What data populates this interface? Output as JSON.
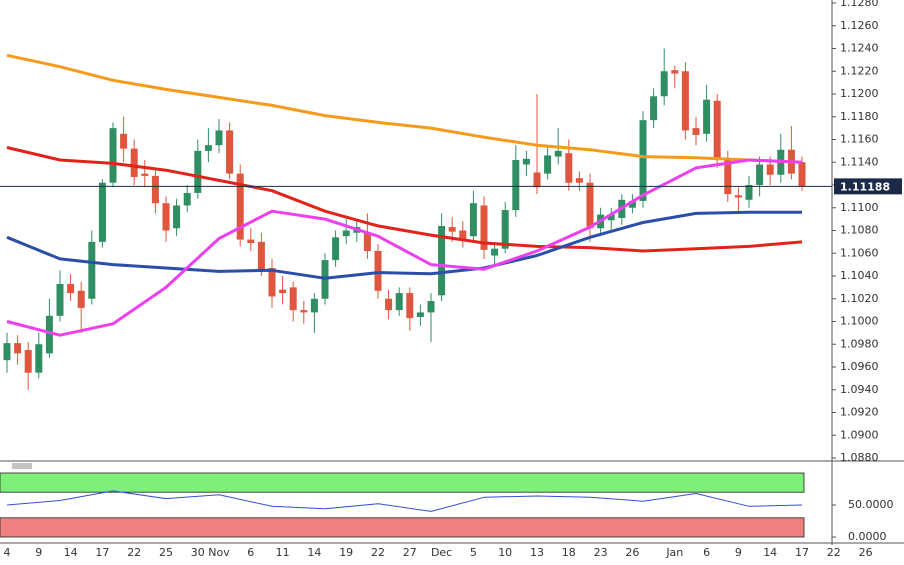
{
  "chart_data": {
    "type": "candlestick",
    "categories": [
      "4",
      null,
      null,
      "9",
      null,
      null,
      "14",
      null,
      null,
      "17",
      null,
      null,
      "22",
      null,
      null,
      "25",
      null,
      null,
      "30",
      null,
      "Nov",
      null,
      null,
      "6",
      null,
      null,
      "11",
      null,
      null,
      "14",
      null,
      null,
      "19",
      null,
      null,
      "22",
      null,
      null,
      "27",
      null,
      null,
      "Dec",
      null,
      null,
      "5",
      null,
      null,
      "10",
      null,
      null,
      "13",
      null,
      null,
      "18",
      null,
      null,
      "23",
      null,
      null,
      "26",
      null,
      null,
      null,
      "Jan",
      null,
      null,
      "6",
      null,
      null,
      "9",
      null,
      null,
      "14",
      null,
      null,
      "17",
      null,
      null,
      "22",
      null,
      null,
      "26"
    ],
    "open": [
      1.0966,
      1.0981,
      1.0975,
      1.0955,
      1.0972,
      1.1005,
      1.1033,
      1.1027,
      1.102,
      1.107,
      1.1122,
      1.1165,
      1.1152,
      1.113,
      1.1128,
      1.1104,
      1.1082,
      1.1102,
      1.1113,
      1.115,
      1.1155,
      1.1168,
      1.113,
      1.1072,
      1.107,
      1.1047,
      1.1028,
      1.103,
      1.101,
      1.1008,
      1.102,
      1.1054,
      1.1075,
      1.1078,
      1.1078,
      1.1062,
      1.102,
      1.101,
      1.1025,
      1.1004,
      1.1008,
      1.1023,
      1.1083,
      1.108,
      1.1075,
      1.1102,
      1.1058,
      1.1064,
      1.1098,
      1.1138,
      1.1131,
      1.113,
      1.1145,
      1.1148,
      1.1126,
      1.1122,
      1.1082,
      1.1089,
      1.1091,
      1.11,
      1.1106,
      1.1177,
      1.1198,
      1.1221,
      1.122,
      1.117,
      1.1165,
      1.1194,
      1.1142,
      1.1111,
      1.1107,
      1.112,
      1.1138,
      1.1129,
      1.1151,
      1.114,
      null,
      null,
      null,
      null,
      null,
      null
    ],
    "high": [
      1.099,
      1.0988,
      1.0982,
      1.099,
      1.102,
      1.1045,
      1.1042,
      1.1035,
      1.108,
      1.1125,
      1.1175,
      1.118,
      1.116,
      1.1142,
      1.1135,
      1.111,
      1.1108,
      1.112,
      1.116,
      1.117,
      1.1178,
      1.1175,
      1.1138,
      1.1082,
      1.1078,
      1.1055,
      1.104,
      1.1035,
      1.1018,
      1.1025,
      1.106,
      1.108,
      1.109,
      1.1088,
      1.1095,
      1.1068,
      1.1028,
      1.103,
      1.103,
      1.1015,
      1.1025,
      1.1095,
      1.1092,
      1.1088,
      1.1115,
      1.111,
      1.107,
      1.1105,
      1.1155,
      1.115,
      1.12,
      1.1155,
      1.117,
      1.116,
      1.1132,
      1.113,
      1.11,
      1.11,
      1.1112,
      1.1112,
      1.1185,
      1.1205,
      1.124,
      1.1225,
      1.1228,
      1.118,
      1.1208,
      1.12,
      1.115,
      1.1118,
      1.1128,
      1.1145,
      1.1145,
      1.1165,
      1.1172,
      1.1145,
      null,
      null,
      null,
      null,
      null,
      null
    ],
    "low": [
      1.0955,
      1.0962,
      1.094,
      1.095,
      1.0968,
      1.1,
      1.1018,
      1.099,
      1.1015,
      1.1065,
      1.1118,
      1.114,
      1.112,
      1.1118,
      1.1095,
      1.107,
      1.1075,
      1.1096,
      1.1108,
      1.114,
      1.1148,
      1.1125,
      1.1066,
      1.1062,
      1.104,
      1.1012,
      1.1015,
      1.1,
      1.0998,
      1.099,
      1.1015,
      1.1048,
      1.1068,
      1.107,
      1.1055,
      1.102,
      1.1002,
      1.1005,
      1.0992,
      1.0996,
      1.0982,
      1.1018,
      1.107,
      1.1065,
      1.107,
      1.1055,
      1.105,
      1.106,
      1.1092,
      1.1128,
      1.1112,
      1.1125,
      1.1138,
      1.1115,
      1.1115,
      1.107,
      1.1075,
      1.108,
      1.1085,
      1.1095,
      1.11,
      1.117,
      1.119,
      1.1205,
      1.116,
      1.1155,
      1.1158,
      1.1135,
      1.1105,
      1.1095,
      1.11,
      1.111,
      1.112,
      1.1122,
      1.1125,
      1.1115,
      null,
      null,
      null,
      null,
      null,
      null
    ],
    "close": [
      1.0981,
      1.0972,
      1.0955,
      1.098,
      1.1005,
      1.1033,
      1.1025,
      1.1012,
      1.107,
      1.1122,
      1.117,
      1.1152,
      1.1127,
      1.1128,
      1.1104,
      1.108,
      1.1102,
      1.1113,
      1.115,
      1.1155,
      1.1168,
      1.113,
      1.1072,
      1.1069,
      1.1045,
      1.1022,
      1.1025,
      1.101,
      1.1008,
      1.102,
      1.1054,
      1.1074,
      1.108,
      1.1083,
      1.1062,
      1.1027,
      1.101,
      1.1025,
      1.1003,
      1.1008,
      1.1018,
      1.1084,
      1.1079,
      1.1072,
      1.1104,
      1.1063,
      1.1064,
      1.1098,
      1.1142,
      1.1143,
      1.1118,
      1.1146,
      1.115,
      1.1122,
      1.1122,
      1.1082,
      1.1094,
      1.1094,
      1.1107,
      1.1106,
      1.1177,
      1.1198,
      1.122,
      1.1218,
      1.1168,
      1.1164,
      1.1195,
      1.1142,
      1.1112,
      1.1109,
      1.112,
      1.1138,
      1.1129,
      1.1151,
      1.113,
      1.1119,
      null,
      null,
      null,
      null,
      null,
      null
    ],
    "up_color": "#2f8f63",
    "down_color": "#e0553d",
    "ylim": [
      1.088,
      1.128
    ],
    "yticks": [
      {
        "value": 1.088,
        "label": "1.0880"
      },
      {
        "value": 1.09,
        "label": "1.0900"
      },
      {
        "value": 1.092,
        "label": "1.0920"
      },
      {
        "value": 1.094,
        "label": "1.0940"
      },
      {
        "value": 1.096,
        "label": "1.0960"
      },
      {
        "value": 1.098,
        "label": "1.0980"
      },
      {
        "value": 1.1,
        "label": "1.1000"
      },
      {
        "value": 1.102,
        "label": "1.1020"
      },
      {
        "value": 1.104,
        "label": "1.1040"
      },
      {
        "value": 1.106,
        "label": "1.1060"
      },
      {
        "value": 1.108,
        "label": "1.1080"
      },
      {
        "value": 1.11,
        "label": "1.1100"
      },
      {
        "value": 1.112,
        "label": "1.1120"
      },
      {
        "value": 1.114,
        "label": "1.1140"
      },
      {
        "value": 1.116,
        "label": "1.1160"
      },
      {
        "value": 1.118,
        "label": "1.1180"
      },
      {
        "value": 1.12,
        "label": "1.1200"
      },
      {
        "value": 1.122,
        "label": "1.1220"
      },
      {
        "value": 1.124,
        "label": "1.1240"
      },
      {
        "value": 1.126,
        "label": "1.1260"
      },
      {
        "value": 1.128,
        "label": "1.1280"
      }
    ],
    "last_price": {
      "value": 1.11188,
      "label": "1.11188",
      "color": "#1c2a4a"
    },
    "moving_averages": [
      {
        "color": "#f59a1b",
        "x": [
          0,
          5,
          10,
          15,
          20,
          25,
          30,
          35,
          40,
          45,
          50,
          55,
          60,
          65,
          70,
          75
        ],
        "values": [
          1.1234,
          1.1224,
          1.1212,
          1.1204,
          1.1197,
          1.119,
          1.1181,
          1.1175,
          1.117,
          1.1162,
          1.1155,
          1.1151,
          1.1145,
          1.1144,
          1.1142,
          1.114
        ]
      },
      {
        "color": "#e2231a",
        "x": [
          0,
          5,
          10,
          15,
          20,
          25,
          30,
          35,
          40,
          45,
          50,
          55,
          60,
          65,
          70,
          75
        ],
        "values": [
          1.1153,
          1.1142,
          1.1139,
          1.1133,
          1.1124,
          1.1115,
          1.1097,
          1.1084,
          1.1076,
          1.1069,
          1.1066,
          1.1065,
          1.1062,
          1.1064,
          1.1066,
          1.107
        ]
      },
      {
        "color": "#2b4fa8",
        "x": [
          0,
          5,
          10,
          15,
          20,
          25,
          30,
          35,
          40,
          45,
          50,
          55,
          60,
          65,
          70,
          75
        ],
        "values": [
          1.1074,
          1.1055,
          1.105,
          1.1047,
          1.1044,
          1.1045,
          1.1038,
          1.1043,
          1.1042,
          1.1047,
          1.1058,
          1.1074,
          1.1087,
          1.1095,
          1.1096,
          1.1096
        ]
      },
      {
        "color": "#ee3fee",
        "x": [
          0,
          5,
          10,
          15,
          20,
          25,
          30,
          35,
          40,
          45,
          50,
          55,
          60,
          65,
          70,
          75
        ],
        "values": [
          1.1,
          1.0988,
          1.0998,
          1.103,
          1.1073,
          1.1097,
          1.109,
          1.1075,
          1.105,
          1.1046,
          1.1062,
          1.1083,
          1.1111,
          1.1135,
          1.1142,
          1.114
        ]
      }
    ],
    "oscillator": {
      "color": "#3050d0",
      "x": [
        0,
        5,
        10,
        15,
        20,
        25,
        30,
        35,
        40,
        45,
        50,
        55,
        60,
        65,
        70,
        75
      ],
      "values": [
        50,
        57,
        72,
        60,
        66,
        48,
        44,
        52,
        40,
        62,
        64,
        62,
        56,
        68,
        48,
        50
      ],
      "ylim": [
        0,
        100
      ],
      "yticks": [
        {
          "value": 50,
          "label": "50.0000"
        },
        {
          "value": 0,
          "label": "0.0000"
        }
      ],
      "bands": [
        {
          "range": [
            70,
            100
          ],
          "color": "#7ef07a"
        },
        {
          "range": [
            0,
            30
          ],
          "color": "#f08080"
        }
      ]
    }
  }
}
